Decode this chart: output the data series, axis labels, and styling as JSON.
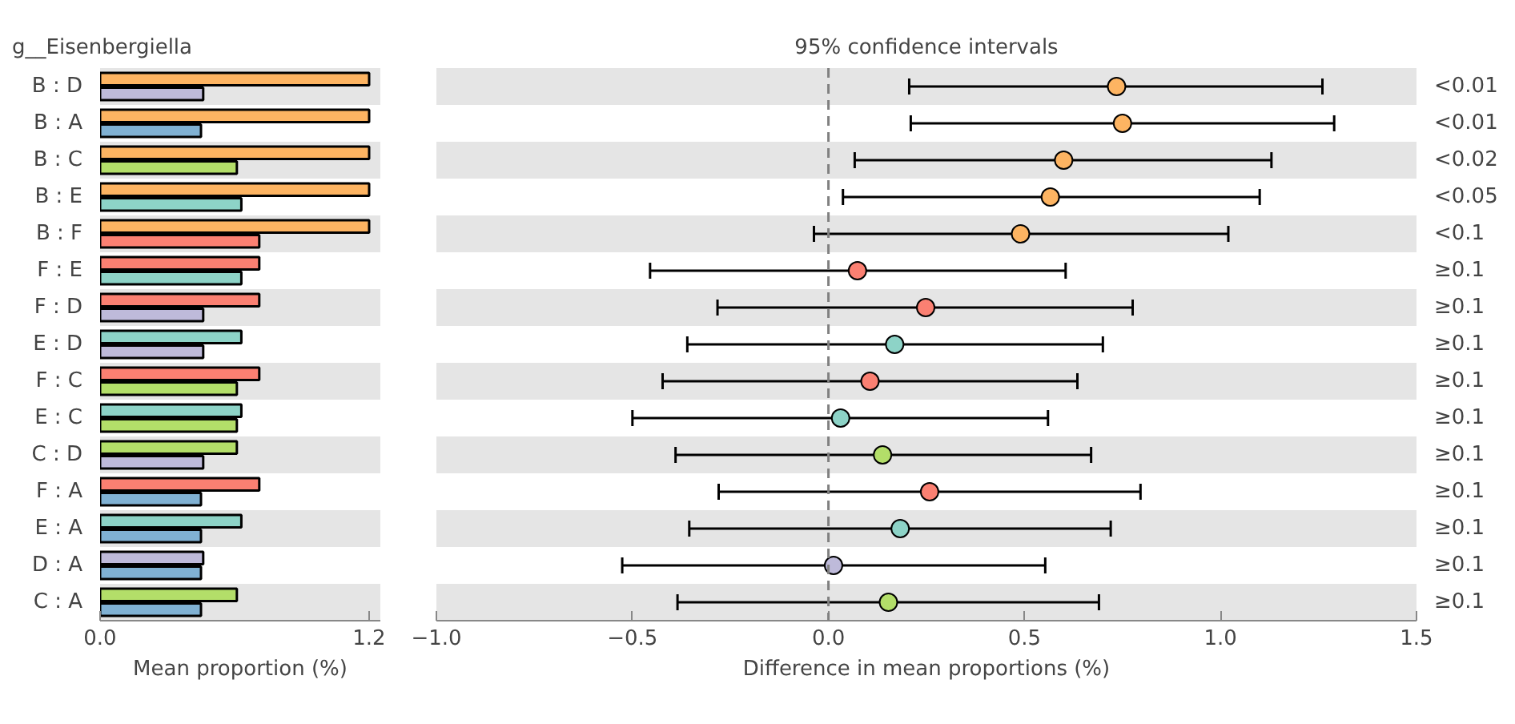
{
  "chart_data": [
    {
      "type": "bar",
      "title": "g__Eisenbergiella",
      "xlabel": "Mean proportion (%)",
      "orientation": "horizontal",
      "categories": [
        "B : D",
        "B : A",
        "B : C",
        "B : E",
        "B : F",
        "F : E",
        "F : D",
        "E : D",
        "F : C",
        "E : C",
        "C : D",
        "F : A",
        "E : A",
        "D : A",
        "C : A"
      ],
      "series": [
        {
          "colors": [
            "#fdb462",
            "#fdb462",
            "#fdb462",
            "#fdb462",
            "#fdb462",
            "#fb8072",
            "#fb8072",
            "#8dd3c7",
            "#fb8072",
            "#8dd3c7",
            "#b3de69",
            "#fb8072",
            "#8dd3c7",
            "#bebada",
            "#b3de69"
          ],
          "values": [
            1.2,
            1.2,
            1.2,
            1.2,
            1.2,
            0.71,
            0.71,
            0.63,
            0.71,
            0.63,
            0.61,
            0.71,
            0.63,
            0.46,
            0.61
          ]
        },
        {
          "colors": [
            "#bebada",
            "#80b1d3",
            "#b3de69",
            "#8dd3c7",
            "#fb8072",
            "#8dd3c7",
            "#bebada",
            "#bebada",
            "#b3de69",
            "#b3de69",
            "#bebada",
            "#80b1d3",
            "#80b1d3",
            "#80b1d3",
            "#80b1d3"
          ],
          "values": [
            0.46,
            0.45,
            0.61,
            0.63,
            0.71,
            0.63,
            0.46,
            0.46,
            0.61,
            0.61,
            0.46,
            0.45,
            0.45,
            0.45,
            0.45
          ]
        }
      ],
      "xlim": [
        0,
        1.25
      ],
      "xticks": [
        {
          "value": 0,
          "label": "0.0"
        },
        {
          "value": 1.2,
          "label": "1.2"
        }
      ],
      "bands": [
        {
          "axis": "y",
          "from": "B : D",
          "to": "B : D",
          "color": "#e5e5e5"
        },
        {
          "axis": "y",
          "from": "B : C",
          "to": "B : C",
          "color": "#e5e5e5"
        },
        {
          "axis": "y",
          "from": "B : F",
          "to": "B : F",
          "color": "#e5e5e5"
        },
        {
          "axis": "y",
          "from": "F : D",
          "to": "F : D",
          "color": "#e5e5e5"
        },
        {
          "axis": "y",
          "from": "F : C",
          "to": "F : C",
          "color": "#e5e5e5"
        },
        {
          "axis": "y",
          "from": "C : D",
          "to": "C : D",
          "color": "#e5e5e5"
        },
        {
          "axis": "y",
          "from": "E : A",
          "to": "E : A",
          "color": "#e5e5e5"
        },
        {
          "axis": "y",
          "from": "C : A",
          "to": "C : A",
          "color": "#e5e5e5"
        }
      ]
    },
    {
      "type": "scatter",
      "title": "95% confidence intervals",
      "xlabel": "Difference in mean proportions (%)",
      "orientation": "horizontal",
      "marker": "circle",
      "tick_labels": "x",
      "categories": [
        "B : D",
        "B : A",
        "B : C",
        "B : E",
        "B : F",
        "F : E",
        "F : D",
        "E : D",
        "F : C",
        "E : C",
        "C : D",
        "F : A",
        "E : A",
        "D : A",
        "C : A"
      ],
      "series": [
        {
          "colors": [
            "#fdb462",
            "#fdb462",
            "#fdb462",
            "#fdb462",
            "#fdb462",
            "#fb8072",
            "#fb8072",
            "#8dd3c7",
            "#fb8072",
            "#8dd3c7",
            "#b3de69",
            "#fb8072",
            "#8dd3c7",
            "#bebada",
            "#b3de69"
          ],
          "values": [
            0.735,
            0.75,
            0.6,
            0.566,
            0.49,
            0.074,
            0.248,
            0.169,
            0.106,
            0.031,
            0.138,
            0.258,
            0.183,
            0.013,
            0.153
          ],
          "errors": [
            [
              0.206,
              1.26
            ],
            [
              0.21,
              1.29
            ],
            [
              0.067,
              1.13
            ],
            [
              0.037,
              1.1
            ],
            [
              -0.037,
              1.02
            ],
            [
              -0.455,
              0.605
            ],
            [
              -0.283,
              0.776
            ],
            [
              -0.36,
              0.7
            ],
            [
              -0.423,
              0.635
            ],
            [
              -0.5,
              0.56
            ],
            [
              -0.39,
              0.67
            ],
            [
              -0.28,
              0.796
            ],
            [
              -0.355,
              0.72
            ],
            [
              -0.526,
              0.553
            ],
            [
              -0.385,
              0.69
            ]
          ]
        }
      ],
      "xlim": [
        -1.0,
        1.5
      ],
      "xticks": [
        {
          "value": -1,
          "label": "−1.0"
        },
        {
          "value": -0.5,
          "label": "−0.5"
        },
        {
          "value": 0,
          "label": "0.0"
        },
        {
          "value": 0.5,
          "label": "0.5"
        },
        {
          "value": 1,
          "label": "1.0"
        },
        {
          "value": 1.5,
          "label": "1.5"
        }
      ],
      "ref_lines": [
        {
          "axis": "x",
          "value": 0,
          "color": "#808080",
          "line_style": "dashed"
        }
      ],
      "bands": [
        {
          "axis": "y",
          "from": "B : D",
          "to": "B : D",
          "color": "#e5e5e5"
        },
        {
          "axis": "y",
          "from": "B : C",
          "to": "B : C",
          "color": "#e5e5e5"
        },
        {
          "axis": "y",
          "from": "B : F",
          "to": "B : F",
          "color": "#e5e5e5"
        },
        {
          "axis": "y",
          "from": "F : D",
          "to": "F : D",
          "color": "#e5e5e5"
        },
        {
          "axis": "y",
          "from": "F : C",
          "to": "F : C",
          "color": "#e5e5e5"
        },
        {
          "axis": "y",
          "from": "C : D",
          "to": "C : D",
          "color": "#e5e5e5"
        },
        {
          "axis": "y",
          "from": "E : A",
          "to": "E : A",
          "color": "#e5e5e5"
        },
        {
          "axis": "y",
          "from": "C : A",
          "to": "C : A",
          "color": "#e5e5e5"
        }
      ],
      "annotations": [
        "<0.01",
        "<0.01",
        "<0.02",
        "<0.05",
        "<0.1",
        "≥0.1",
        "≥0.1",
        "≥0.1",
        "≥0.1",
        "≥0.1",
        "≥0.1",
        "≥0.1",
        "≥0.1",
        "≥0.1",
        "≥0.1"
      ]
    }
  ]
}
